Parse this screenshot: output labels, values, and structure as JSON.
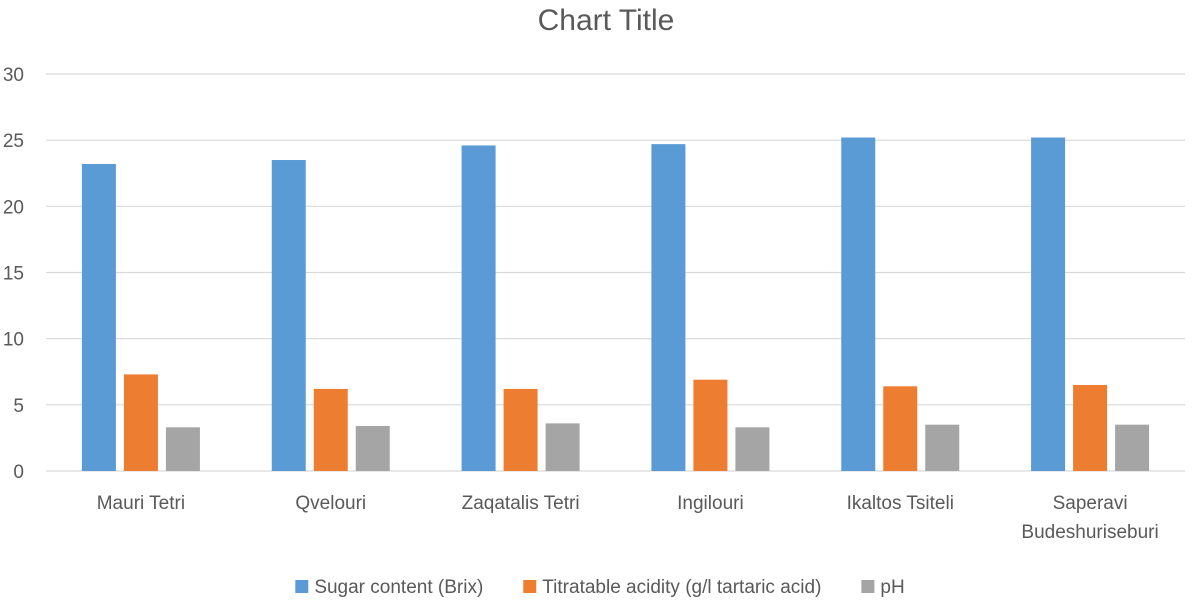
{
  "chart_data": {
    "type": "bar",
    "title": "Chart Title",
    "categories": [
      [
        "Mauri Tetri"
      ],
      [
        "Qvelouri"
      ],
      [
        "Zaqatalis Tetri"
      ],
      [
        "Ingilouri"
      ],
      [
        "Ikaltos Tsiteli"
      ],
      [
        "Saperavi",
        "Budeshuriseburi"
      ]
    ],
    "series": [
      {
        "name": "Sugar content (Brix)",
        "color": "#5b9bd5",
        "values": [
          23.2,
          23.5,
          24.6,
          24.7,
          25.2,
          25.2
        ]
      },
      {
        "name": "Titratable acidity (g/l tartaric acid)",
        "color": "#ed7d31",
        "values": [
          7.3,
          6.2,
          6.2,
          6.9,
          6.4,
          6.5
        ]
      },
      {
        "name": "pH",
        "color": "#a5a5a5",
        "values": [
          3.3,
          3.4,
          3.6,
          3.3,
          3.5,
          3.5
        ]
      }
    ],
    "y_ticks": [
      "0",
      "5",
      "10",
      "15",
      "20",
      "25",
      "30"
    ],
    "ylim": [
      0,
      30
    ],
    "grid": true,
    "legend": "bottom"
  }
}
